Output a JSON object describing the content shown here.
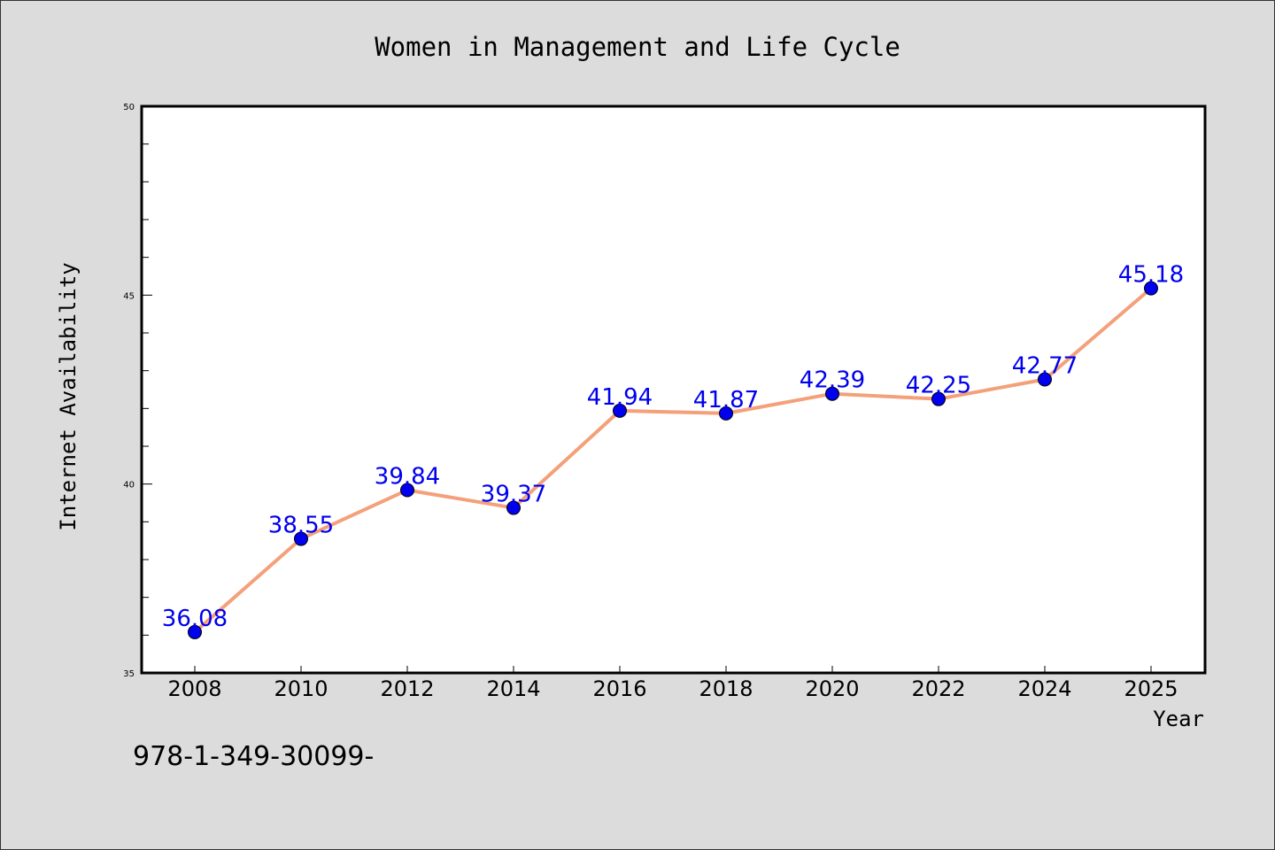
{
  "chart_data": {
    "type": "line",
    "title": "Women in Management and Life Cycle",
    "xlabel": "Year",
    "ylabel": "Internet Availability",
    "x": [
      "2008",
      "2010",
      "2012",
      "2014",
      "2016",
      "2018",
      "2020",
      "2022",
      "2024",
      "2025"
    ],
    "values": [
      36.08,
      38.55,
      39.84,
      39.37,
      41.94,
      41.87,
      42.39,
      42.25,
      42.77,
      45.18
    ],
    "data_labels": [
      "36.08",
      "38.55",
      "39.84",
      "39.37",
      "41.94",
      "41.87",
      "42.39",
      "42.25",
      "42.77",
      "45.18"
    ],
    "ylim": [
      35,
      50
    ],
    "yticks": [
      35,
      40,
      45,
      50
    ],
    "y_minor_step": 1,
    "grid": false,
    "legend": "none",
    "line_color": "#f4a07a",
    "marker_color": "#0000ee",
    "label_color": "#0000ee"
  },
  "footnote": "978-1-349-30099-"
}
